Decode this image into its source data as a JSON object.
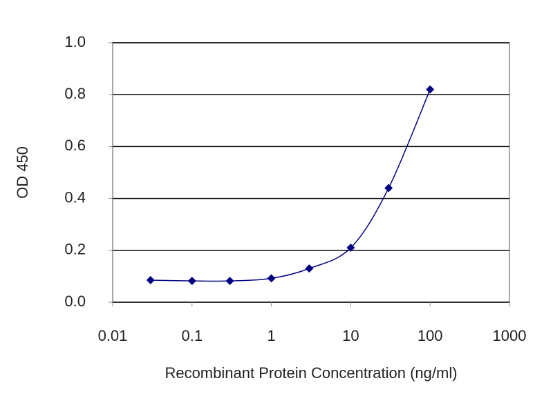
{
  "chart_data": {
    "type": "line",
    "x_label": "Recombinant Protein Concentration (ng/ml)",
    "y_label": "OD 450",
    "x": [
      0.03,
      0.1,
      0.3,
      1,
      3,
      10,
      30,
      100
    ],
    "series": [
      {
        "color": "#000080",
        "values": [
          0.085,
          0.082,
          0.082,
          0.092,
          0.13,
          0.21,
          0.44,
          0.82
        ]
      }
    ],
    "xlim": [
      0.01,
      1000
    ],
    "xticks": [
      0.01,
      0.1,
      1,
      10,
      100,
      1000
    ],
    "xscale": "log",
    "ylim": [
      0,
      1
    ],
    "yticks": [
      {
        "value": 0,
        "label": "0.0"
      },
      0.2,
      0.4,
      0.6,
      0.8,
      {
        "value": 1,
        "label": "1.0"
      }
    ],
    "grid": true
  }
}
